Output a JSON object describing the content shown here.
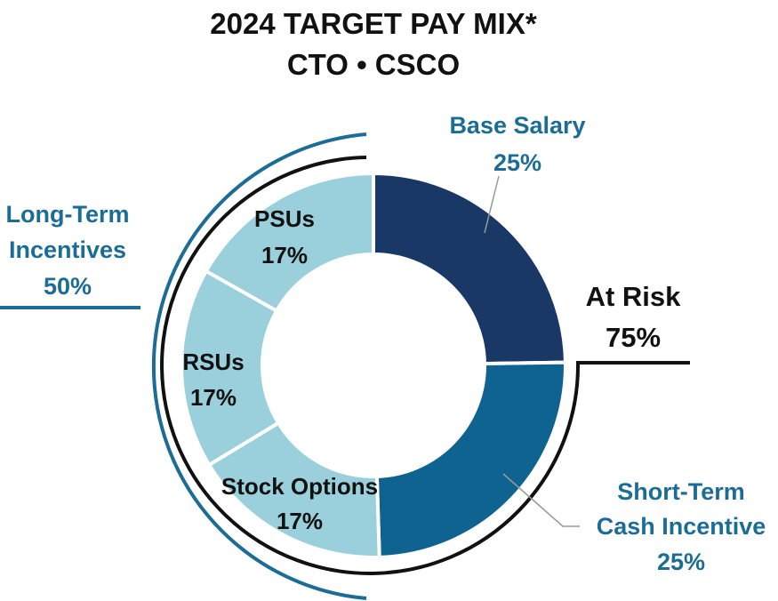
{
  "chart_data": {
    "type": "pie",
    "title": "2024 TARGET PAY MIX*",
    "subtitle": "CTO • CSCO",
    "slices": [
      {
        "label": "Base Salary",
        "value": 25,
        "value_label": "25%",
        "color": "#1a3866"
      },
      {
        "label": "Short-Term Cash Incentive",
        "label_lines": [
          "Short-Term",
          "Cash Incentive"
        ],
        "value": 25,
        "value_label": "25%",
        "color": "#0f6390"
      },
      {
        "label": "Stock Options",
        "value": 17,
        "value_label": "17%",
        "color": "#9acfdc"
      },
      {
        "label": "RSUs",
        "value": 17,
        "value_label": "17%",
        "color": "#9acfdc"
      },
      {
        "label": "PSUs",
        "value": 17,
        "value_label": "17%",
        "color": "#9acfdc"
      }
    ],
    "groups": [
      {
        "label_lines": [
          "At Risk"
        ],
        "value_label": "75%",
        "color": "#111111"
      },
      {
        "label_lines": [
          "Long-Term",
          "Incentives"
        ],
        "value_label": "50%",
        "color": "#1b6d96"
      }
    ]
  }
}
